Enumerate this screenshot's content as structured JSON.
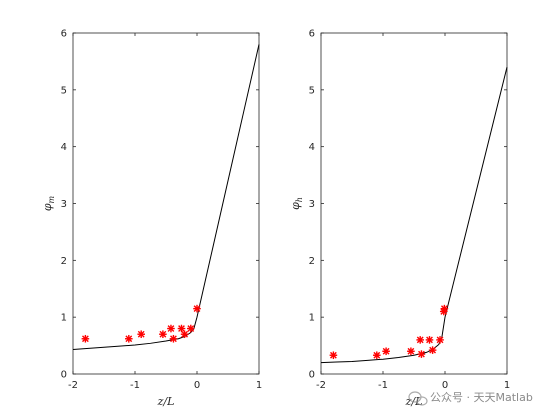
{
  "chart_data": [
    {
      "type": "line",
      "xlabel": "z/L",
      "ylabel": "φm",
      "xlim": [
        -2,
        1
      ],
      "ylim": [
        0,
        6
      ],
      "xticks": [
        "-2",
        "-1",
        "0",
        "1"
      ],
      "yticks": [
        "0",
        "1",
        "2",
        "3",
        "4",
        "5",
        "6"
      ],
      "grid": false,
      "series": [
        {
          "style": "line",
          "color": "#000000",
          "x": [
            -2,
            -1.75,
            -1.5,
            -1.25,
            -1,
            -0.75,
            -0.5,
            -0.3,
            -0.2,
            -0.1,
            -0.05,
            0,
            0.25,
            0.5,
            0.75,
            1
          ],
          "y": [
            0.43,
            0.45,
            0.47,
            0.49,
            0.51,
            0.54,
            0.58,
            0.62,
            0.66,
            0.73,
            0.8,
            1.0,
            2.2,
            3.4,
            4.6,
            5.8
          ]
        },
        {
          "style": "marker",
          "marker": "asterisk",
          "color": "#ff0000",
          "x": [
            -1.8,
            -1.1,
            -0.9,
            -0.55,
            -0.42,
            -0.38,
            -0.25,
            -0.2,
            -0.1,
            0.0
          ],
          "y": [
            0.62,
            0.62,
            0.7,
            0.7,
            0.8,
            0.62,
            0.8,
            0.7,
            0.8,
            1.15
          ]
        }
      ]
    },
    {
      "type": "line",
      "xlabel": "z/L",
      "ylabel": "φh",
      "xlim": [
        -2,
        1
      ],
      "ylim": [
        0,
        6
      ],
      "xticks": [
        "-2",
        "-1",
        "0",
        "1"
      ],
      "yticks": [
        "0",
        "1",
        "2",
        "3",
        "4",
        "5",
        "6"
      ],
      "grid": false,
      "series": [
        {
          "style": "line",
          "color": "#000000",
          "x": [
            -2,
            -1.75,
            -1.5,
            -1.25,
            -1,
            -0.75,
            -0.5,
            -0.3,
            -0.2,
            -0.1,
            -0.05,
            0,
            0.25,
            0.5,
            0.75,
            1
          ],
          "y": [
            0.2,
            0.21,
            0.22,
            0.24,
            0.26,
            0.29,
            0.33,
            0.38,
            0.43,
            0.52,
            0.65,
            1.0,
            2.1,
            3.2,
            4.3,
            5.4
          ]
        },
        {
          "style": "marker",
          "marker": "asterisk",
          "color": "#ff0000",
          "x": [
            -1.8,
            -1.1,
            -0.95,
            -0.55,
            -0.4,
            -0.38,
            -0.25,
            -0.2,
            -0.08,
            -0.02,
            -0.01
          ],
          "y": [
            0.33,
            0.33,
            0.4,
            0.4,
            0.6,
            0.35,
            0.6,
            0.42,
            0.6,
            1.1,
            1.15
          ]
        }
      ]
    }
  ],
  "watermark": {
    "text": "公众号 · 天天Matlab",
    "icon": "wechat-icon"
  }
}
